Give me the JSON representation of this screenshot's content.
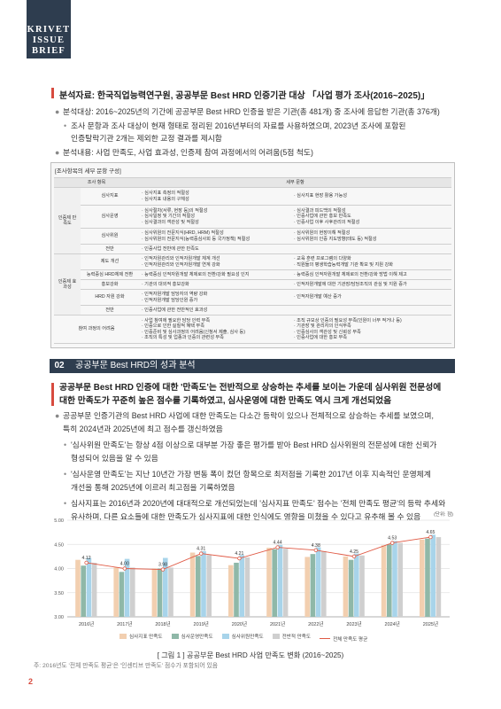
{
  "logo": {
    "line1": "KRIVET",
    "line2": "ISSUE",
    "line3": "BRIEF"
  },
  "source": {
    "title": "분석자료: 한국직업능력연구원, 공공부문 Best HRD 인증기관 대상 「사업 평가 조사(2016~2025)」",
    "b1": "분석대상: 2016~2025년의 기간에 공공부문 Best HRD 인증을 받은 기관(총 481개) 중 조사에 응답한 기관(총 376개)",
    "b1_sub1": "조사 문항과 조사 대상이 현재 형태로 정리된 2016년부터의 자료를 사용하였으며, 2023년 조사에 포함된",
    "b1_sub2": "인증탈락기관 2개는 제외한 교정 결과를 제시함",
    "b2": "분석내용: 사업 만족도, 사업 효과성, 인증제 참여 과정에서의 어려움(5점 척도)"
  },
  "table": {
    "title": "[조사항목의 세부 문항 구성]",
    "h1": "조사 항목",
    "h2": "세부 문항",
    "g1": "인증제 만족도",
    "g2": "인증제 효과성",
    "r1": "심사지표",
    "r1a": "· 심사지표 측정의 적절성\n· 심사지표 내용의 구체성",
    "r1b": "· 심사지표 현장 활용 가능성",
    "r2": "심사운영",
    "r2a": "· 심사절차(서류, 현장 등)의 적절성\n· 심사일정 및 기간의 적절성\n· 심사결과의 객관성 및 적절성",
    "r2b": "· 심사결과 피드백의 적절성\n· 인증사업에 관한 홍보 만족도\n· 인증사업 이후 사후관리의 적절성",
    "r3": "심사위원",
    "r3a": "· 심사위원의 전문지식(HRD, HRM) 적절성\n· 심사위원의 전문지식(능력중심사회 등 국가정책) 적절성",
    "r3b": "· 심사위원의 현장이해 적절성\n· 심사위원의 인증 지도방향(태도 등) 적절성",
    "r4": "전반",
    "r4a": "· 인증사업 전반에 관한 만족도",
    "r5": "제도 개선",
    "r5a": "· 인적자원관리와 인적자원개발 체계 개선\n· 인적자원관리와 인적자원개발 연계 강화",
    "r5b": "· 교육 훈련 프로그램의 다양화\n· 직원들의 평생학습능력개발 기관 확보 및 지원 강화",
    "r6": "능력중심 HRD체제 전환",
    "r6a": "· 능력중심 인적자원개발 체제로의 전환/강화 필요성 인지",
    "r6b": "· 능력중심 인적자원개발 체제로의 전환/강화 방법 이해 제고",
    "r7": "홍보강화",
    "r7a": "· 기관의 대외적 홍보강화",
    "r7b": "· 인적자원개발에 대한 기관장/담당조직의 관심 및 지원 증가",
    "r8": "HRD 자원 강화",
    "r8a": "· 인적자원개발 담당자의 역량 강화\n· 인적자원개발 담당인원 증가",
    "r8b": "· 인적자원개발 예산 증가",
    "r9": "전반",
    "r9a": "· 인증사업에 관한 전반적인 효과성",
    "r10": "참여 과정의 어려움",
    "r10a": "· 사업 참여에 필요한 담당 인력 부족\n· 인증으로 인한 실질적 혜택 부족\n· 인증준비 및 심사과정의 어려움(신청서 제출, 심사 등)\n· 조직의 특성 및 업종과 인증의 관련성 부족",
    "r10b": "· 조직 규모상 인증의 필요성 부족(인원이 너무 적거나 등)\n· 기관장 및 관리자의 인식부족\n· 인증심사의 객관성 및 신뢰성 부족\n· 인증사업에 대한 홍보 부족"
  },
  "section": {
    "num": "02",
    "title": "공공부문 Best HRD의 성과 분석"
  },
  "body": {
    "lead1": "공공부문 Best HRD 인증에 대한 '만족도'는 전반적으로 상승하는 추세를 보이는 가운데 심사위원 전문성에",
    "lead2": "대한 만족도가 꾸준히 높은 점수를 기록하였고, 심사운영에 대한 만족도 역시 크게 개선되었음",
    "p1a": "공공부문 인증기관의 Best HRD 사업에 대한 만족도는 다소간 등락이 있으나 전체적으로 상승하는 추세를 보였으며,",
    "p1b": "특히 2024년과 2025년에 최고 점수를 갱신하였음",
    "p2a": "'심사위원 만족도'는 항상 4점 이상으로 대부분 가장 좋은 평가를 받아 Best HRD 심사위원의 전문성에 대한 신뢰가",
    "p2b": "형성되어 있음을 알 수 있음",
    "p3a": "'심사운영 만족도'는 지난 10년간 가장 변동 폭이 컸던 항목으로 최저점을 기록한 2017년 이후 지속적인 운영체계",
    "p3b": "개선을 통해 2025년에 이르러 최고점을 기록하였음",
    "p4a": "심사지표는 2016년과 2020년에 대대적으로 개선되었는데 '심사지표 만족도' 점수는 '전체 만족도 평균'의 등락 추세와",
    "p4b": "유사하며, 다른 요소들에 대한 만족도가 심사지표에 대한 인식에도 영향을 미쳤을 수 있다고 유추해 볼 수 있음"
  },
  "chart_data": {
    "type": "bar",
    "unit": "(단위: 점)",
    "categories": [
      "2016년",
      "2017년",
      "2018년",
      "2019년",
      "2020년",
      "2021년",
      "2022년",
      "2023년",
      "2024년",
      "2025년"
    ],
    "ylim": [
      3.0,
      5.0
    ],
    "yticks": [
      "3.00",
      "3.50",
      "4.00",
      "4.50",
      "5.00"
    ],
    "series": [
      {
        "name": "심사지표 만족도",
        "color": "#f2cfb0",
        "values": [
          4.18,
          4.02,
          4.0,
          4.33,
          4.07,
          4.43,
          4.24,
          4.25,
          4.48,
          4.6
        ]
      },
      {
        "name": "심사운영만족도",
        "color": "#8fb8a8",
        "values": [
          4.06,
          3.93,
          4.0,
          4.26,
          4.12,
          4.4,
          4.3,
          4.18,
          4.5,
          4.62
        ]
      },
      {
        "name": "심사위원만족도",
        "color": "#a8d4ea",
        "values": [
          4.22,
          4.2,
          4.22,
          4.36,
          4.28,
          4.49,
          4.44,
          4.31,
          4.57,
          4.7
        ]
      },
      {
        "name": "전반적 만족도",
        "color": "#cfcfcf",
        "values": [
          4.12,
          4.02,
          4.02,
          4.28,
          4.23,
          4.41,
          4.36,
          4.27,
          4.53,
          4.65
        ]
      }
    ],
    "line": {
      "name": "전체 만족도 평균",
      "color": "#e05a45",
      "values": [
        4.12,
        4.0,
        3.98,
        4.31,
        4.21,
        4.44,
        4.38,
        4.25,
        4.53,
        4.65
      ],
      "labels": [
        "4.12",
        "4.00",
        "3.98",
        "4.31",
        "4.21",
        "4.44",
        "4.38",
        "4.25",
        "4.53",
        "4.65"
      ]
    },
    "caption": "[ 그림 1 ]  공공부문 Best HRD 사업 만족도 변화 (2016~2025)"
  },
  "note": "주: 2016년도 '전체 만족도 평균'은 '인센티브 만족도' 점수가 포함되어 있음",
  "page_number": "2"
}
